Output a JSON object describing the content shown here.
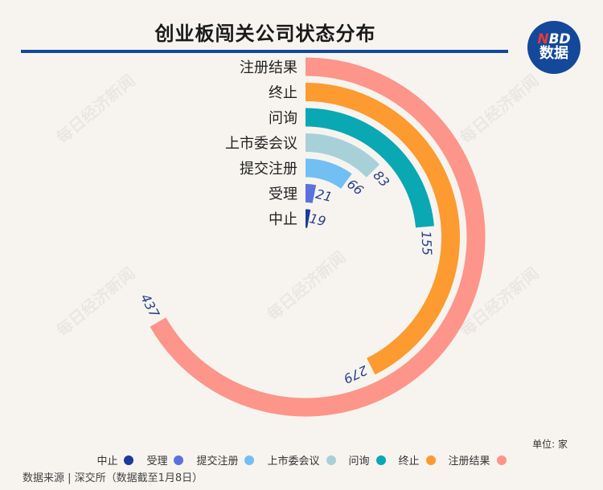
{
  "title": "创业板闯关公司状态分布",
  "logo": {
    "line1_n": "N",
    "line1_rest": "BD",
    "line2": "数据"
  },
  "unit": "单位: 家",
  "source": "数据来源 | 深交所（数据截至1月8日）",
  "watermark": "每日经济新闻",
  "chart_data": {
    "type": "radial-bar",
    "max_value": 437,
    "categories": [
      "注册结果",
      "终止",
      "问询",
      "上市委会议",
      "提交注册",
      "受理",
      "中止"
    ],
    "values": [
      437,
      279,
      155,
      83,
      66,
      21,
      19
    ],
    "colors": [
      "#fd958a",
      "#fd9a30",
      "#0aa8b2",
      "#a8d0d9",
      "#71bff3",
      "#5a71de",
      "#1a3a9c"
    ],
    "legend_order": [
      "中止",
      "受理",
      "提交注册",
      "上市委会议",
      "问询",
      "终止",
      "注册结果"
    ],
    "legend_placement": "bottom"
  }
}
